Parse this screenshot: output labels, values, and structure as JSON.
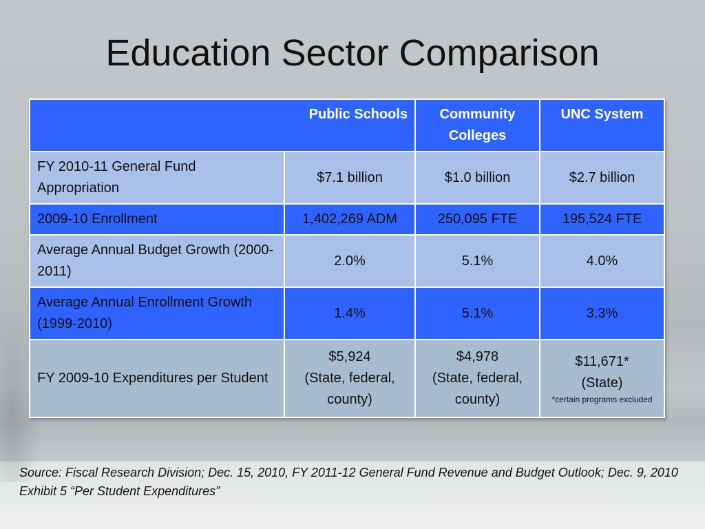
{
  "slide": {
    "title": "Education Sector Comparison",
    "source": "Source: Fiscal Research Division; Dec. 15, 2010, FY 2011-12 General Fund Revenue and Budget Outlook; Dec. 9, 2010 Exhibit 5 “Per Student Expenditures”"
  },
  "table": {
    "columns": [
      "Public Schools",
      "Community Colleges",
      "UNC System"
    ],
    "rows": [
      {
        "label": "FY 2010-11 General Fund Appropriation",
        "values": [
          "$7.1 billion",
          "$1.0 billion",
          "$2.7 billion"
        ]
      },
      {
        "label": "2009-10 Enrollment",
        "values": [
          "1,402,269 ADM",
          "250,095 FTE",
          "195,524 FTE"
        ]
      },
      {
        "label": "Average Annual Budget Growth (2000-2011)",
        "values": [
          "2.0%",
          "5.1%",
          "4.0%"
        ]
      },
      {
        "label": "Average Annual Enrollment Growth (1999-2010)",
        "values": [
          "1.4%",
          "5.1%",
          "3.3%"
        ]
      },
      {
        "label": "FY 2009-10 Expenditures per Student",
        "values": [
          "$5,924",
          "$4,978",
          "$11,671*"
        ],
        "notes": [
          "(State, federal, county)",
          "(State, federal, county)",
          "(State)"
        ],
        "footnote": "*certain programs excluded"
      }
    ]
  },
  "colors": {
    "header_blue": "#2f63ff",
    "row_light": "#a9c1e8",
    "row_pale": "#a8bccf"
  }
}
